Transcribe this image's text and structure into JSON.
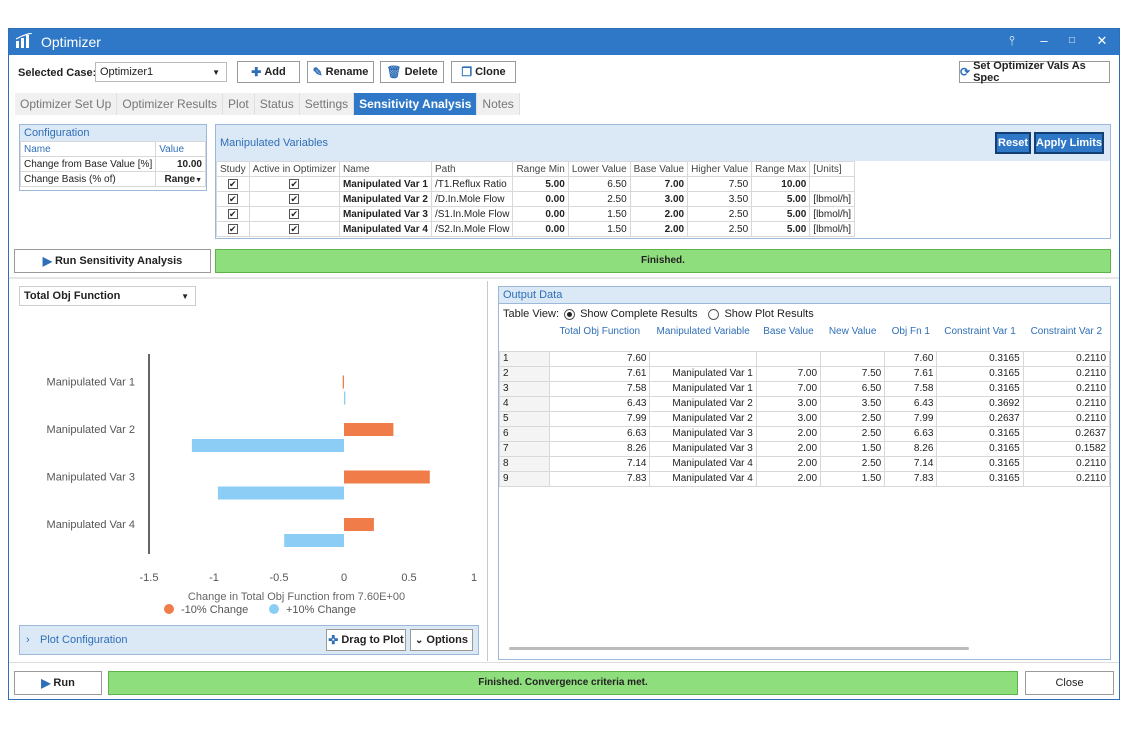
{
  "window": {
    "title": "Optimizer",
    "icon": "bar-chart-icon"
  },
  "titlebar_buttons": {
    "pin": "pin-icon",
    "minimize": "minimize-icon",
    "maximize": "maximize-icon",
    "close": "close-icon"
  },
  "toolbar": {
    "selected_case_label": "Selected Case:",
    "selected_case_value": "Optimizer1",
    "add": "Add",
    "rename": "Rename",
    "delete": "Delete",
    "clone": "Clone",
    "set_vals": "Set Optimizer Vals As Spec"
  },
  "tabs": [
    "Optimizer Set Up",
    "Optimizer Results",
    "Plot",
    "Status",
    "Settings",
    "Sensitivity Analysis",
    "Notes"
  ],
  "active_tab": "Sensitivity Analysis",
  "configuration": {
    "title": "Configuration",
    "col_name": "Name",
    "col_value": "Value",
    "rows": [
      {
        "name": "Change from Base Value [%]",
        "value": "10.00"
      },
      {
        "name": "Change Basis (% of)",
        "value": "Range"
      }
    ]
  },
  "manipulated": {
    "title": "Manipulated Variables",
    "reset": "Reset",
    "apply_limits": "Apply Limits",
    "headers": [
      "Study",
      "Active in Optimizer",
      "Name",
      "Path",
      "Range Min",
      "Lower Value",
      "Base Value",
      "Higher Value",
      "Range Max",
      "[Units]"
    ],
    "rows": [
      {
        "name": "Manipulated Var 1",
        "path": "/T1.Reflux Ratio",
        "range_min": "5.00",
        "lower": "6.50",
        "base": "7.00",
        "higher": "7.50",
        "range_max": "10.00",
        "units": ""
      },
      {
        "name": "Manipulated Var 2",
        "path": "/D.In.Mole Flow",
        "range_min": "0.00",
        "lower": "2.50",
        "base": "3.00",
        "higher": "3.50",
        "range_max": "5.00",
        "units": "[lbmol/h]"
      },
      {
        "name": "Manipulated Var 3",
        "path": "/S1.In.Mole Flow",
        "range_min": "0.00",
        "lower": "1.50",
        "base": "2.00",
        "higher": "2.50",
        "range_max": "5.00",
        "units": "[lbmol/h]"
      },
      {
        "name": "Manipulated Var 4",
        "path": "/S2.In.Mole Flow",
        "range_min": "0.00",
        "lower": "1.50",
        "base": "2.00",
        "higher": "2.50",
        "range_max": "5.00",
        "units": "[lbmol/h]"
      }
    ]
  },
  "run_sensitivity": "Run Sensitivity Analysis",
  "sensitivity_status": "Finished.",
  "plot_selector": "Total Obj Function",
  "chart_data": {
    "type": "bar",
    "orientation": "horizontal",
    "categories": [
      "Manipulated Var 1",
      "Manipulated Var 2",
      "Manipulated Var 3",
      "Manipulated Var 4"
    ],
    "series": [
      {
        "name": "-10% Change",
        "color": "#f07c4a",
        "values": [
          -0.01,
          0.38,
          0.66,
          0.23
        ]
      },
      {
        "name": "+10% Change",
        "color": "#8ccdf5",
        "values": [
          0.01,
          -1.17,
          -0.97,
          -0.46
        ]
      }
    ],
    "xlabel": "Change in Total Obj Function from 7.60E+00",
    "xlim": [
      -1.5,
      1
    ],
    "xticks": [
      "-1.5",
      "-1",
      "-0.5",
      "0",
      "0.5",
      "1"
    ],
    "grid": false,
    "legend": "bottom"
  },
  "plot_config": {
    "label": "Plot Configuration",
    "drag": "Drag to Plot",
    "options": "Options"
  },
  "output": {
    "title": "Output Data",
    "table_view_label": "Table View:",
    "option_complete": "Show Complete Results",
    "option_plot": "Show Plot Results",
    "headers": [
      "",
      "Total Obj Function",
      "Manipulated Variable",
      "Base Value",
      "New Value",
      "Obj Fn 1",
      "Constraint Var 1",
      "Constraint Var 2"
    ],
    "rows": [
      [
        "1",
        "7.60",
        "",
        "",
        "",
        "7.60",
        "0.3165",
        "0.2110"
      ],
      [
        "2",
        "7.61",
        "Manipulated Var 1",
        "7.00",
        "7.50",
        "7.61",
        "0.3165",
        "0.2110"
      ],
      [
        "3",
        "7.58",
        "Manipulated Var 1",
        "7.00",
        "6.50",
        "7.58",
        "0.3165",
        "0.2110"
      ],
      [
        "4",
        "6.43",
        "Manipulated Var 2",
        "3.00",
        "3.50",
        "6.43",
        "0.3692",
        "0.2110"
      ],
      [
        "5",
        "7.99",
        "Manipulated Var 2",
        "3.00",
        "2.50",
        "7.99",
        "0.2637",
        "0.2110"
      ],
      [
        "6",
        "6.63",
        "Manipulated Var 3",
        "2.00",
        "2.50",
        "6.63",
        "0.3165",
        "0.2637"
      ],
      [
        "7",
        "8.26",
        "Manipulated Var 3",
        "2.00",
        "1.50",
        "8.26",
        "0.3165",
        "0.1582"
      ],
      [
        "8",
        "7.14",
        "Manipulated Var 4",
        "2.00",
        "2.50",
        "7.14",
        "0.3165",
        "0.2110"
      ],
      [
        "9",
        "7.83",
        "Manipulated Var 4",
        "2.00",
        "1.50",
        "7.83",
        "0.3165",
        "0.2110"
      ]
    ]
  },
  "footer": {
    "run": "Run",
    "status": "Finished. Convergence criteria met.",
    "close": "Close"
  }
}
